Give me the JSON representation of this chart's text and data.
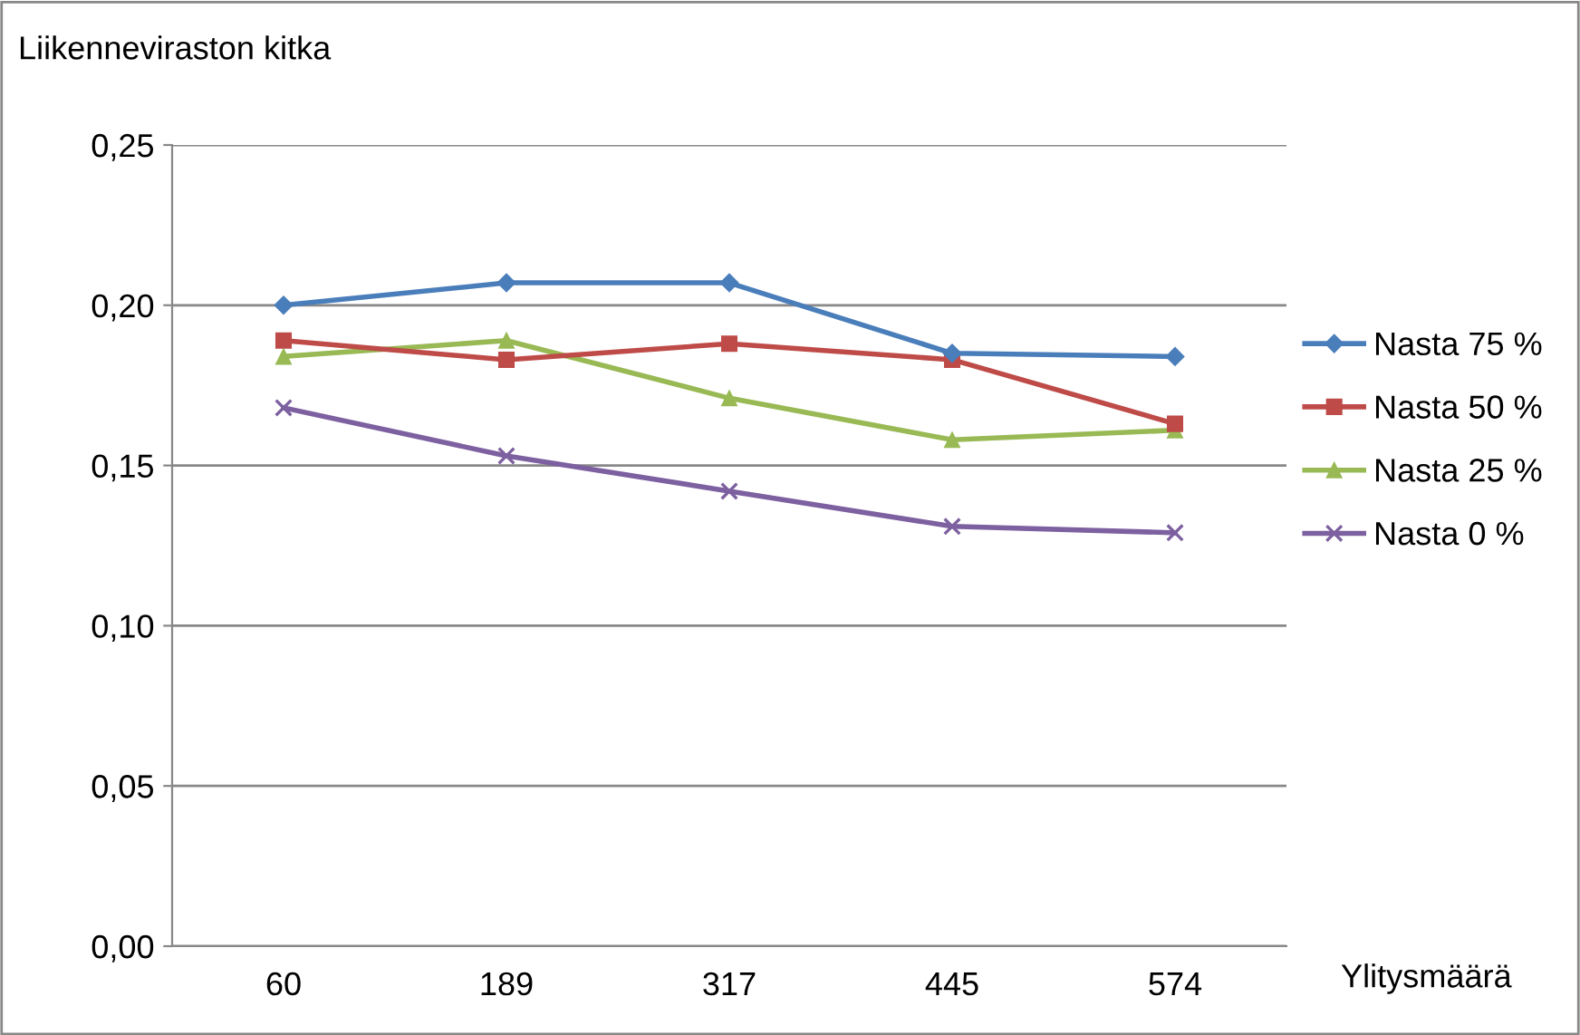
{
  "chart_data": {
    "type": "line",
    "ylabel": "Liikenneviraston kitka",
    "xlabel": "Ylitysmäärä",
    "categories": [
      "60",
      "189",
      "317",
      "445",
      "574"
    ],
    "series": [
      {
        "name": "Nasta 75 %",
        "color": "#4a7ebb",
        "marker": "diamond",
        "values": [
          0.2,
          0.207,
          0.207,
          0.185,
          0.184
        ]
      },
      {
        "name": "Nasta 50 %",
        "color": "#be4b48",
        "marker": "square",
        "values": [
          0.189,
          0.183,
          0.188,
          0.183,
          0.163
        ]
      },
      {
        "name": "Nasta 25 %",
        "color": "#98b954",
        "marker": "triangle",
        "values": [
          0.184,
          0.189,
          0.171,
          0.158,
          0.161
        ]
      },
      {
        "name": "Nasta 0 %",
        "color": "#7d60a0",
        "marker": "cross",
        "values": [
          0.168,
          0.153,
          0.142,
          0.131,
          0.129
        ]
      }
    ],
    "ylim": [
      0,
      0.25
    ],
    "yticks": [
      {
        "value": 0,
        "label": "0,00"
      },
      {
        "value": 0.05,
        "label": "0,05"
      },
      {
        "value": 0.1,
        "label": "0,10"
      },
      {
        "value": 0.15,
        "label": "0,15"
      },
      {
        "value": 0.2,
        "label": "0,20"
      },
      {
        "value": 0.25,
        "label": "0,25"
      }
    ],
    "grid": "y",
    "legend": "right",
    "line_style": "solid"
  }
}
